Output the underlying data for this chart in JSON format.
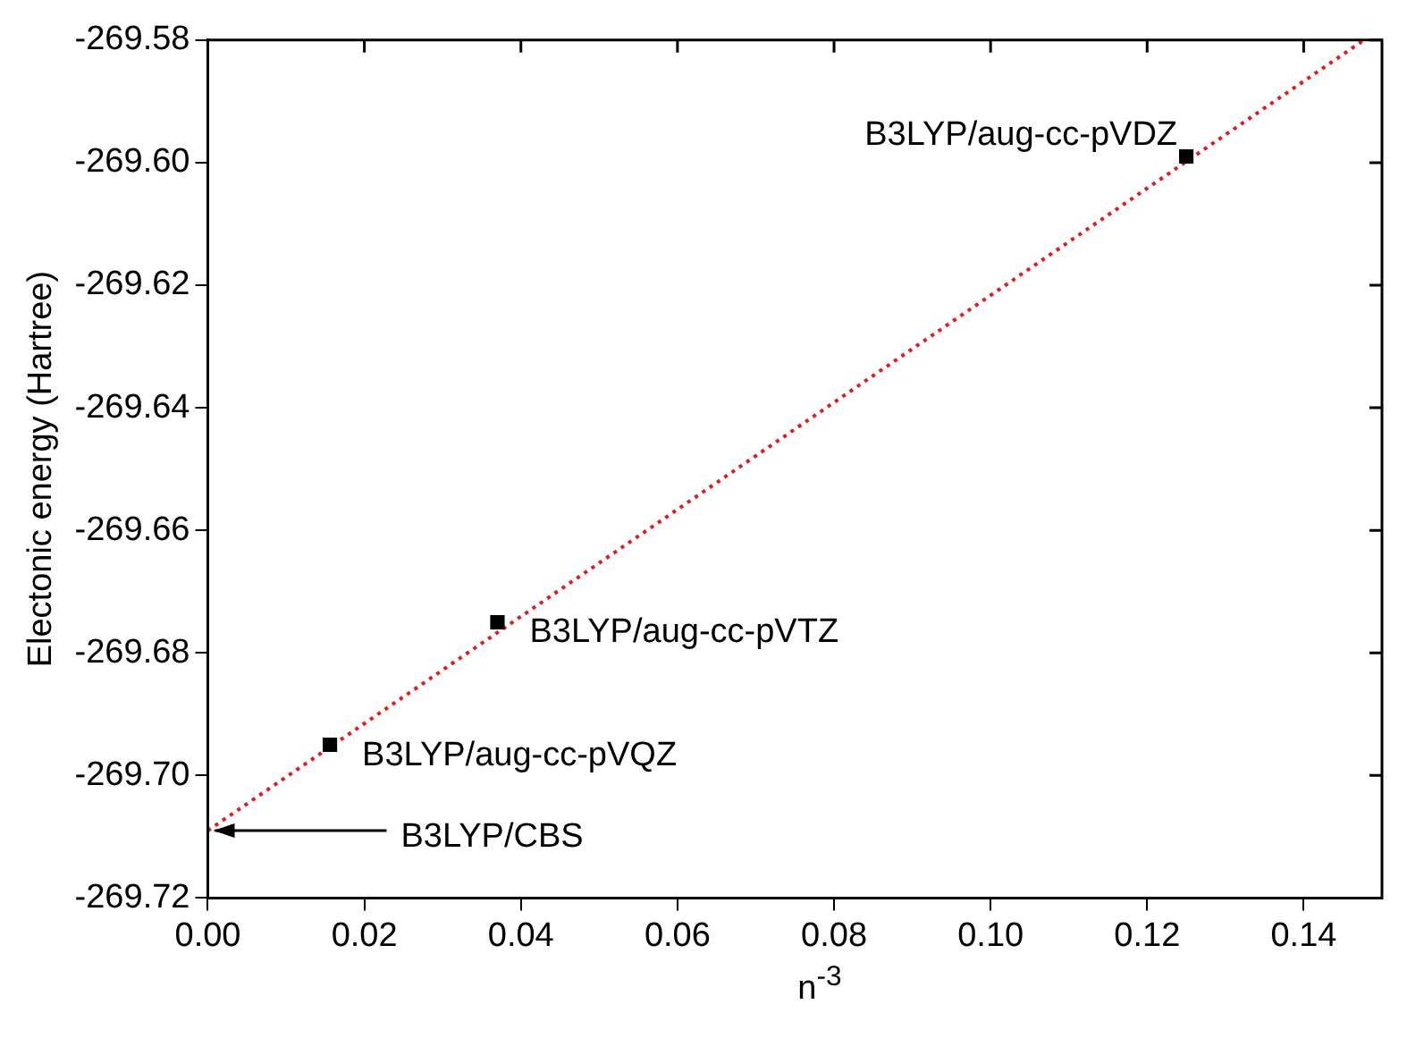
{
  "chart_data": {
    "type": "scatter",
    "xlabel": "n$^{-3}$",
    "ylabel": "Electonic energy (Hartree)",
    "xlim": [
      0,
      0.15
    ],
    "xticks": [
      {
        "value": 0,
        "label": "0.00"
      },
      {
        "value": 0.02,
        "label": "0.02"
      },
      {
        "value": 0.04,
        "label": "0.04"
      },
      {
        "value": 0.06,
        "label": "0.06"
      },
      {
        "value": 0.08,
        "label": "0.08"
      },
      {
        "value": 0.1,
        "label": "0.10"
      },
      {
        "value": 0.12,
        "label": "0.12"
      },
      {
        "value": 0.14,
        "label": "0.14"
      }
    ],
    "ylim": [
      -269.72,
      -269.58
    ],
    "yticks": [
      {
        "value": -269.72,
        "label": "-269.72"
      },
      {
        "value": -269.7,
        "label": "-269.70"
      },
      {
        "value": -269.68,
        "label": "-269.68"
      },
      {
        "value": -269.66,
        "label": "-269.66"
      },
      {
        "value": -269.64,
        "label": "-269.64"
      },
      {
        "value": -269.62,
        "label": "-269.62"
      },
      {
        "value": -269.6,
        "label": "-269.60"
      },
      {
        "value": -269.58,
        "label": "-269.58"
      }
    ],
    "grid": false,
    "marker": "square",
    "series": [
      {
        "color": "#000000",
        "x": [
          0.125,
          0.037,
          0.0156
        ],
        "values": [
          -269.599,
          -269.675,
          -269.695
        ]
      },
      {
        "type": "line",
        "color": "#e31a1c",
        "line_style": "dotted",
        "marker": "none",
        "x": [
          0,
          0.1477
        ],
        "values": [
          -269.709,
          -269.58
        ]
      }
    ],
    "annotations": [
      {
        "text": "B3LYP/aug-cc-pVDZ",
        "x": 0.125,
        "y": -269.599
      },
      {
        "text": "B3LYP/aug-cc-pVTZ",
        "x": 0.037,
        "y": -269.675
      },
      {
        "text": "B3LYP/aug-cc-pVQZ",
        "x": 0.0156,
        "y": -269.695
      },
      {
        "text": "B3LYP/CBS",
        "x": 0,
        "y": -269.709
      }
    ]
  }
}
